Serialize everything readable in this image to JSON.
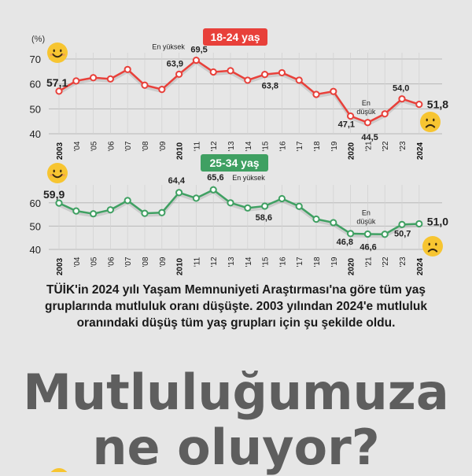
{
  "colors": {
    "background": "#e6e6e6",
    "series_1": "#e8403a",
    "series_2": "#3fa062",
    "emoji": "#f7c531",
    "headline": "#5e5e5e"
  },
  "icons": [
    "smiling-face-icon",
    "frowning-face-icon"
  ],
  "chart_data": [
    {
      "type": "line",
      "title": "18-24 yaş",
      "ylabel": "(%)",
      "ylim": [
        40,
        70
      ],
      "yticks": [
        "40",
        "50",
        "60",
        "70"
      ],
      "categories": [
        "2003",
        "'04",
        "'05",
        "'06",
        "'07",
        "'08",
        "'09",
        "2010",
        "'11",
        "'12",
        "'13",
        "'14",
        "'15",
        "'16",
        "'17",
        "'18",
        "'19",
        "2020",
        "'21",
        "'22",
        "'23",
        "2024"
      ],
      "series": [
        {
          "values": [
            57.1,
            61.2,
            62.5,
            62.0,
            65.8,
            59.5,
            57.8,
            63.9,
            69.5,
            64.8,
            65.3,
            61.5,
            63.8,
            64.5,
            61.5,
            55.8,
            57.0,
            47.1,
            44.5,
            48.0,
            54.0,
            51.8
          ]
        }
      ],
      "data_labels": [
        "57,1",
        "63,9",
        "69,5",
        "63,8",
        "47,1",
        "44,5",
        "54,0",
        "51,8"
      ],
      "annotations": {
        "highest": "En yüksek",
        "lowest_1": "En",
        "lowest_2": "düşük"
      },
      "grid": true
    },
    {
      "type": "line",
      "title": "25-34 yaş",
      "ylim": [
        40,
        65
      ],
      "yticks": [
        "40",
        "50",
        "60"
      ],
      "categories": [
        "2003",
        "'04",
        "'05",
        "'06",
        "'07",
        "'08",
        "'09",
        "2010",
        "'11",
        "'12",
        "'13",
        "'14",
        "'15",
        "'16",
        "'17",
        "'18",
        "'19",
        "2020",
        "'21",
        "'22",
        "'23",
        "2024"
      ],
      "series": [
        {
          "values": [
            59.9,
            56.5,
            55.3,
            57.0,
            61.0,
            55.5,
            55.8,
            64.4,
            62.0,
            65.6,
            60.0,
            57.8,
            58.6,
            61.8,
            58.5,
            53.0,
            51.5,
            46.8,
            46.6,
            46.5,
            50.7,
            51.0
          ]
        }
      ],
      "data_labels": [
        "59,9",
        "64,4",
        "65,6",
        "58,6",
        "46,8",
        "46,6",
        "50,7",
        "51,0"
      ],
      "annotations": {
        "highest": "En yüksek",
        "lowest_1": "En",
        "lowest_2": "düşük"
      },
      "grid": true
    }
  ],
  "text": {
    "description": "TÜİK'in 2024 yılı Yaşam Memnuniyeti Araştırması'na göre tüm yaş gruplarında mutluluk oranı düşüşte. 2003 yılından 2024'e mutluluk oranındaki düşüş tüm yaş grupları için şu şekilde oldu.",
    "headline_1": "Mutluluğumuza",
    "headline_2": "ne oluyor?"
  }
}
